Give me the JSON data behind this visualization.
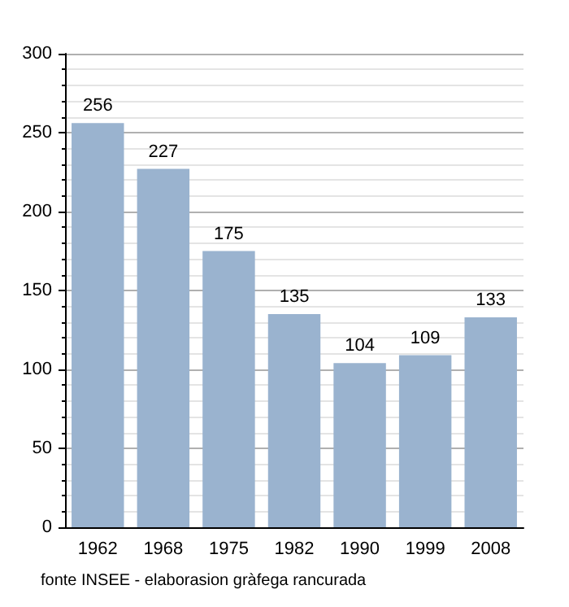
{
  "chart_data": {
    "type": "bar",
    "categories": [
      "1962",
      "1968",
      "1975",
      "1982",
      "1990",
      "1999",
      "2008"
    ],
    "values": [
      256,
      227,
      175,
      135,
      104,
      109,
      133
    ],
    "color": "#9ab3cf",
    "ylim": [
      0,
      300
    ],
    "yticks": [
      0,
      50,
      100,
      150,
      200,
      250,
      300
    ],
    "grid": "y",
    "data_labels": true,
    "annotations": [
      "fonte INSEE - elaborasion gràfega rancurada"
    ]
  }
}
